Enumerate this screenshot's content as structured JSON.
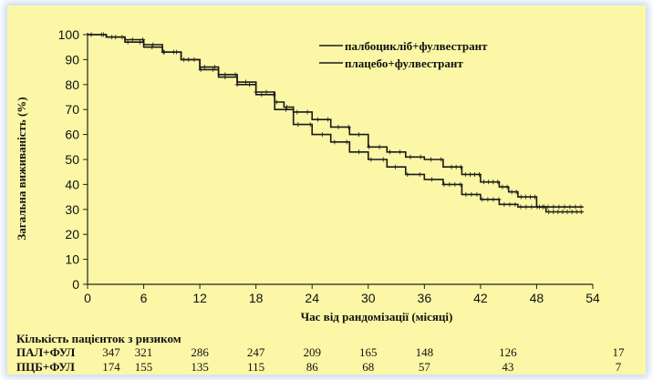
{
  "chart_data": {
    "type": "line",
    "title": "",
    "xlabel": "Час від рандомізації  (місяці)",
    "ylabel": "Загальна виживаність (%)",
    "xlim": [
      0,
      54
    ],
    "ylim": [
      0,
      100
    ],
    "x_ticks": [
      0,
      6,
      12,
      18,
      24,
      30,
      36,
      42,
      48,
      54
    ],
    "y_ticks": [
      0,
      10,
      20,
      30,
      40,
      50,
      60,
      70,
      80,
      90,
      100
    ],
    "grid": false,
    "legend_position": "top-right",
    "series": [
      {
        "name": "палбоцикліб+фулвестрант",
        "color": "#1a1a1a",
        "censored": true,
        "points": [
          [
            0,
            100
          ],
          [
            2,
            99
          ],
          [
            4,
            98
          ],
          [
            6,
            96
          ],
          [
            8,
            93
          ],
          [
            10,
            90
          ],
          [
            12,
            87
          ],
          [
            14,
            84
          ],
          [
            16,
            81
          ],
          [
            18,
            77
          ],
          [
            20,
            73
          ],
          [
            21,
            71
          ],
          [
            22,
            69
          ],
          [
            24,
            66
          ],
          [
            26,
            63
          ],
          [
            28,
            60
          ],
          [
            30,
            55
          ],
          [
            32,
            53
          ],
          [
            34,
            51
          ],
          [
            36,
            50
          ],
          [
            38,
            47
          ],
          [
            40,
            44
          ],
          [
            42,
            41
          ],
          [
            44,
            39
          ],
          [
            45,
            37
          ],
          [
            46,
            35
          ],
          [
            48,
            31
          ],
          [
            49,
            29
          ],
          [
            51,
            29
          ],
          [
            53,
            29
          ]
        ]
      },
      {
        "name": "плацебо+фулвестрант",
        "color": "#1a1a1a",
        "censored": true,
        "points": [
          [
            0,
            100
          ],
          [
            2,
            99
          ],
          [
            4,
            97
          ],
          [
            6,
            95
          ],
          [
            8,
            93
          ],
          [
            10,
            90
          ],
          [
            12,
            86
          ],
          [
            14,
            83
          ],
          [
            16,
            80
          ],
          [
            18,
            76
          ],
          [
            20,
            70
          ],
          [
            22,
            64
          ],
          [
            24,
            60
          ],
          [
            26,
            57
          ],
          [
            28,
            53
          ],
          [
            30,
            50
          ],
          [
            32,
            47
          ],
          [
            34,
            44
          ],
          [
            36,
            42
          ],
          [
            38,
            40
          ],
          [
            40,
            36
          ],
          [
            42,
            34
          ],
          [
            44,
            32
          ],
          [
            46,
            31
          ],
          [
            48,
            31
          ],
          [
            50,
            31
          ],
          [
            52,
            31
          ],
          [
            53,
            31
          ]
        ]
      }
    ]
  },
  "risk_table": {
    "title": "Кількість пацієнток з ризиком",
    "months": [
      0,
      6,
      12,
      18,
      24,
      30,
      36,
      42,
      48,
      54
    ],
    "rows": [
      {
        "label": "ПАЛ+ФУЛ",
        "values": [
          "347",
          "321",
          "286",
          "247",
          "209",
          "165",
          "148",
          "126",
          "17"
        ]
      },
      {
        "label": "ПЦБ+ФУЛ",
        "values": [
          "174",
          "155",
          "135",
          "115",
          "86",
          "68",
          "57",
          "43",
          "7"
        ]
      }
    ]
  }
}
